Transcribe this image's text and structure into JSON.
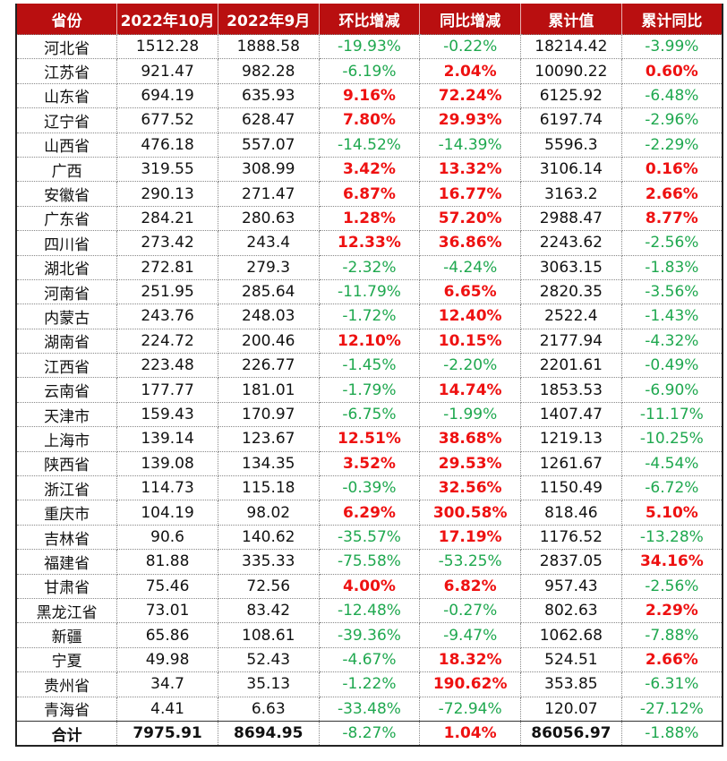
{
  "headers": [
    "省份",
    "2022年10月",
    "2022年9月",
    "环比增减",
    "同比增减",
    "累计值",
    "累计同比"
  ],
  "rows": [
    [
      "河北省",
      "1512.28",
      "1888.58",
      "-19.93%",
      "-0.22%",
      "18214.42",
      "-3.99%"
    ],
    [
      "江苏省",
      "921.47",
      "982.28",
      "-6.19%",
      "2.04%",
      "10090.22",
      "0.60%"
    ],
    [
      "山东省",
      "694.19",
      "635.93",
      "9.16%",
      "72.24%",
      "6125.92",
      "-6.48%"
    ],
    [
      "辽宁省",
      "677.52",
      "628.47",
      "7.80%",
      "29.93%",
      "6197.74",
      "-2.96%"
    ],
    [
      "山西省",
      "476.18",
      "557.07",
      "-14.52%",
      "-14.39%",
      "5596.3",
      "-2.29%"
    ],
    [
      "广西",
      "319.55",
      "308.99",
      "3.42%",
      "13.32%",
      "3106.14",
      "0.16%"
    ],
    [
      "安徽省",
      "290.13",
      "271.47",
      "6.87%",
      "16.77%",
      "3163.2",
      "2.66%"
    ],
    [
      "广东省",
      "284.21",
      "280.63",
      "1.28%",
      "57.20%",
      "2988.47",
      "8.77%"
    ],
    [
      "四川省",
      "273.42",
      "243.4",
      "12.33%",
      "36.86%",
      "2243.62",
      "-2.56%"
    ],
    [
      "湖北省",
      "272.81",
      "279.3",
      "-2.32%",
      "-4.24%",
      "3063.15",
      "-1.83%"
    ],
    [
      "河南省",
      "251.95",
      "285.64",
      "-11.79%",
      "6.65%",
      "2820.35",
      "-3.56%"
    ],
    [
      "内蒙古",
      "243.76",
      "248.03",
      "-1.72%",
      "12.40%",
      "2522.4",
      "-1.43%"
    ],
    [
      "湖南省",
      "224.72",
      "200.46",
      "12.10%",
      "10.15%",
      "2177.94",
      "-4.32%"
    ],
    [
      "江西省",
      "223.48",
      "226.77",
      "-1.45%",
      "-2.20%",
      "2201.61",
      "-0.49%"
    ],
    [
      "云南省",
      "177.77",
      "181.01",
      "-1.79%",
      "14.74%",
      "1853.53",
      "-6.90%"
    ],
    [
      "天津市",
      "159.43",
      "170.97",
      "-6.75%",
      "-1.99%",
      "1407.47",
      "-11.17%"
    ],
    [
      "上海市",
      "139.14",
      "123.67",
      "12.51%",
      "38.68%",
      "1219.13",
      "-10.25%"
    ],
    [
      "陕西省",
      "139.08",
      "134.35",
      "3.52%",
      "29.53%",
      "1261.67",
      "-4.54%"
    ],
    [
      "浙江省",
      "114.73",
      "115.18",
      "-0.39%",
      "32.56%",
      "1150.49",
      "-6.72%"
    ],
    [
      "重庆市",
      "104.19",
      "98.02",
      "6.29%",
      "300.58%",
      "818.46",
      "5.10%"
    ],
    [
      "吉林省",
      "90.6",
      "140.62",
      "-35.57%",
      "17.19%",
      "1176.52",
      "-13.28%"
    ],
    [
      "福建省",
      "81.88",
      "335.33",
      "-75.58%",
      "-53.25%",
      "2837.05",
      "34.16%"
    ],
    [
      "甘肃省",
      "75.46",
      "72.56",
      "4.00%",
      "6.82%",
      "957.43",
      "-2.56%"
    ],
    [
      "黑龙江省",
      "73.01",
      "83.42",
      "-12.48%",
      "-0.27%",
      "802.63",
      "2.29%"
    ],
    [
      "新疆",
      "65.86",
      "108.61",
      "-39.36%",
      "-9.47%",
      "1062.68",
      "-7.88%"
    ],
    [
      "宁夏",
      "49.98",
      "52.43",
      "-4.67%",
      "18.32%",
      "524.51",
      "2.66%"
    ],
    [
      "贵州省",
      "34.7",
      "35.13",
      "-1.22%",
      "190.62%",
      "353.85",
      "-6.31%"
    ],
    [
      "青海省",
      "4.41",
      "6.63",
      "-33.48%",
      "-72.94%",
      "120.07",
      "-27.12%"
    ]
  ],
  "total": [
    "合计",
    "7975.91",
    "8694.95",
    "-8.27%",
    "1.04%",
    "86056.97",
    "-1.88%"
  ],
  "colors": {
    "header": "#b90f10",
    "negative": "#1fa84f",
    "positive": "#ee1111"
  }
}
